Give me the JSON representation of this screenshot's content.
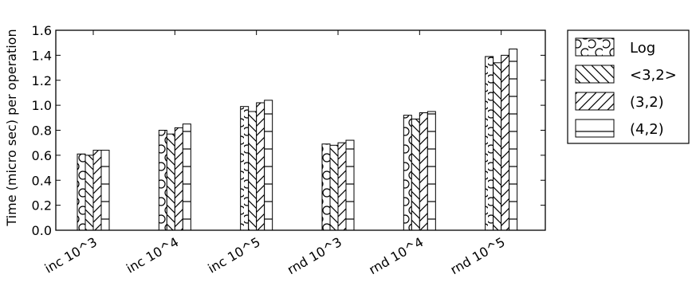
{
  "chart_data": {
    "type": "bar",
    "title": "",
    "xlabel": "",
    "ylabel": "Time (micro sec) per operation",
    "ylim": [
      0.0,
      1.6
    ],
    "yticks": [
      "0.0",
      "0.2",
      "0.4",
      "0.6",
      "0.8",
      "1.0",
      "1.2",
      "1.4",
      "1.6"
    ],
    "categories": [
      "inc 10^3",
      "inc 10^4",
      "inc 10^5",
      "rnd 10^3",
      "rnd 10^4",
      "rnd 10^5"
    ],
    "grid": false,
    "legend_position": "right",
    "series": [
      {
        "name": "Log",
        "pattern": "circles",
        "values": [
          0.61,
          0.8,
          0.99,
          0.69,
          0.92,
          1.39
        ]
      },
      {
        "name": "<3,2>",
        "pattern": "backslash",
        "values": [
          0.6,
          0.77,
          0.95,
          0.68,
          0.89,
          1.34
        ]
      },
      {
        "name": "(3,2)",
        "pattern": "slash",
        "values": [
          0.64,
          0.82,
          1.02,
          0.7,
          0.94,
          1.4
        ]
      },
      {
        "name": "(4,2)",
        "pattern": "horizontal",
        "values": [
          0.64,
          0.85,
          1.04,
          0.72,
          0.95,
          1.45
        ]
      }
    ],
    "colors": {
      "bar_fill": "#ffffff",
      "stroke": "#000000"
    }
  }
}
